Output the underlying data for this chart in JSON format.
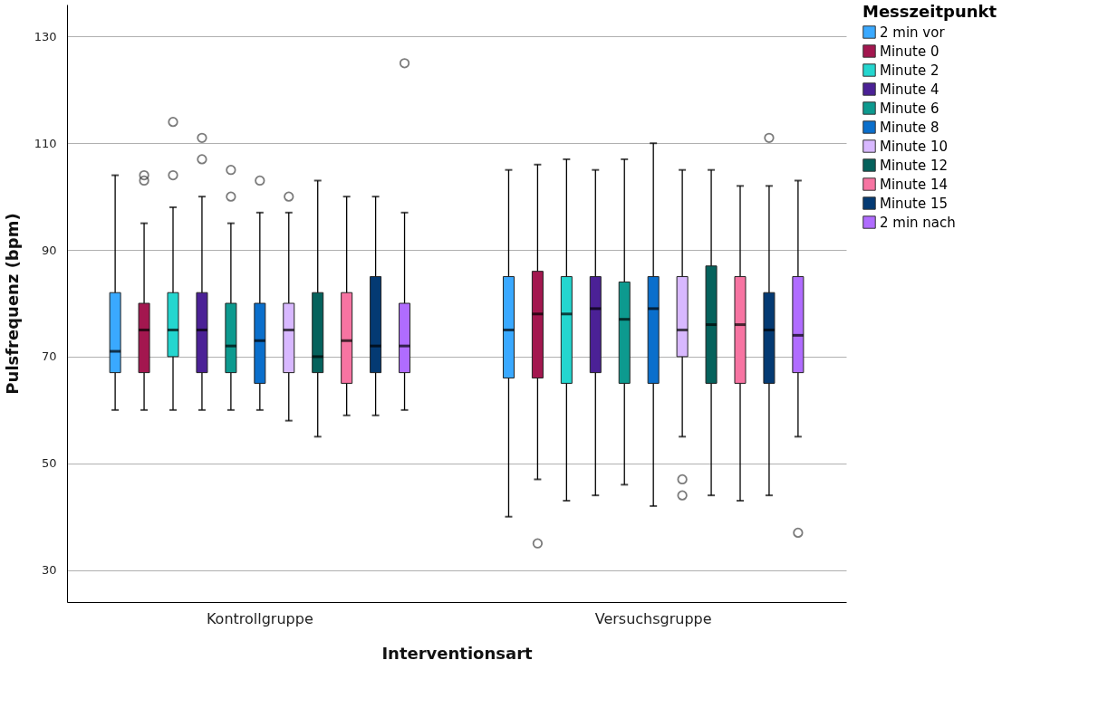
{
  "chart_data": {
    "type": "box",
    "xlabel": "Interventionsart",
    "ylabel": "Pulsfrequenz (bpm)",
    "legend_title": "Messzeitpunkt",
    "categories": [
      "Kontrollgruppe",
      "Versuchsgruppe"
    ],
    "ylim": [
      24,
      136
    ],
    "yticks": [
      30,
      50,
      70,
      90,
      110,
      130
    ],
    "grid": "y",
    "legend": "right",
    "series": [
      {
        "name": "2 min vor",
        "color": "#3aa9ff",
        "boxes": [
          {
            "low": 60,
            "q1": 67,
            "median": 71,
            "q3": 82,
            "high": 104
          },
          {
            "low": 40,
            "q1": 66,
            "median": 75,
            "q3": 85,
            "high": 105
          }
        ]
      },
      {
        "name": "Minute 0",
        "color": "#a3174f",
        "boxes": [
          {
            "low": 60,
            "q1": 67,
            "median": 75,
            "q3": 80,
            "high": 95,
            "outliers": [
              104,
              103
            ]
          },
          {
            "low": 47,
            "q1": 66,
            "median": 78,
            "q3": 86,
            "high": 106,
            "outliers": [
              35
            ]
          }
        ]
      },
      {
        "name": "Minute 2",
        "color": "#24d6cf",
        "boxes": [
          {
            "low": 60,
            "q1": 70,
            "median": 75,
            "q3": 82,
            "high": 98,
            "outliers": [
              114,
              104
            ]
          },
          {
            "low": 43,
            "q1": 65,
            "median": 78,
            "q3": 85,
            "high": 107
          }
        ]
      },
      {
        "name": "Minute 4",
        "color": "#4b2196",
        "boxes": [
          {
            "low": 60,
            "q1": 67,
            "median": 75,
            "q3": 82,
            "high": 100,
            "outliers": [
              111,
              107
            ]
          },
          {
            "low": 44,
            "q1": 67,
            "median": 79,
            "q3": 85,
            "high": 105
          }
        ]
      },
      {
        "name": "Minute 6",
        "color": "#0d9a8f",
        "boxes": [
          {
            "low": 60,
            "q1": 67,
            "median": 72,
            "q3": 80,
            "high": 95,
            "outliers": [
              105,
              100
            ]
          },
          {
            "low": 46,
            "q1": 65,
            "median": 77,
            "q3": 84,
            "high": 107
          }
        ]
      },
      {
        "name": "Minute 8",
        "color": "#0a6fcc",
        "boxes": [
          {
            "low": 60,
            "q1": 65,
            "median": 73,
            "q3": 80,
            "high": 97,
            "outliers": [
              103
            ]
          },
          {
            "low": 42,
            "q1": 65,
            "median": 79,
            "q3": 85,
            "high": 110
          }
        ]
      },
      {
        "name": "Minute 10",
        "color": "#d8b8ff",
        "boxes": [
          {
            "low": 58,
            "q1": 67,
            "median": 75,
            "q3": 80,
            "high": 97,
            "outliers": [
              100
            ]
          },
          {
            "low": 55,
            "q1": 70,
            "median": 75,
            "q3": 85,
            "high": 105,
            "outliers": [
              47,
              44
            ]
          }
        ]
      },
      {
        "name": "Minute 12",
        "color": "#05625c",
        "boxes": [
          {
            "low": 55,
            "q1": 67,
            "median": 70,
            "q3": 82,
            "high": 103
          },
          {
            "low": 44,
            "q1": 65,
            "median": 76,
            "q3": 87,
            "high": 105
          }
        ]
      },
      {
        "name": "Minute 14",
        "color": "#f774a2",
        "boxes": [
          {
            "low": 59,
            "q1": 65,
            "median": 73,
            "q3": 82,
            "high": 100
          },
          {
            "low": 43,
            "q1": 65,
            "median": 76,
            "q3": 85,
            "high": 102
          }
        ]
      },
      {
        "name": "Minute 15",
        "color": "#043a73",
        "boxes": [
          {
            "low": 59,
            "q1": 67,
            "median": 72,
            "q3": 85,
            "high": 100
          },
          {
            "low": 44,
            "q1": 65,
            "median": 75,
            "q3": 82,
            "high": 102,
            "outliers": [
              111
            ]
          }
        ]
      },
      {
        "name": "2 min nach",
        "color": "#b06cff",
        "boxes": [
          {
            "low": 60,
            "q1": 67,
            "median": 72,
            "q3": 80,
            "high": 97,
            "outliers": [
              125
            ]
          },
          {
            "low": 55,
            "q1": 67,
            "median": 74,
            "q3": 85,
            "high": 103,
            "outliers": [
              37
            ]
          }
        ]
      }
    ]
  }
}
